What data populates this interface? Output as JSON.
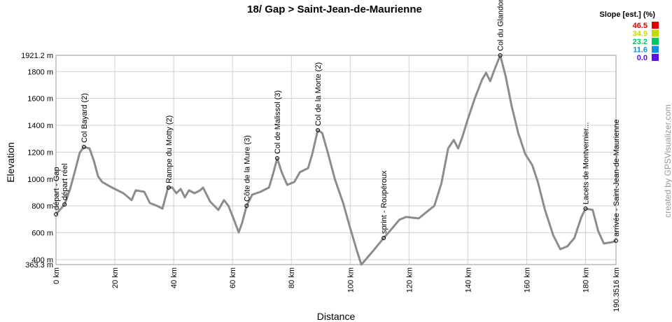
{
  "chart_data": {
    "type": "line",
    "title": "18/ Gap > Saint-Jean-de-Maurienne",
    "x_label": "Distance",
    "y_label": "Elevation",
    "credit": "created by GPSVisualizer.com",
    "color": "#8c8c8c",
    "grid": true,
    "xlim": [
      0,
      190.3516
    ],
    "ylim": [
      363.3,
      1921.2
    ],
    "xticks": [
      {
        "value": 0,
        "label": "0 km"
      },
      {
        "value": 20,
        "label": "20 km"
      },
      {
        "value": 40,
        "label": "40 km"
      },
      {
        "value": 60,
        "label": "60 km"
      },
      {
        "value": 80,
        "label": "80 km"
      },
      {
        "value": 100,
        "label": "100 km"
      },
      {
        "value": 120,
        "label": "120 km"
      },
      {
        "value": 140,
        "label": "140 km"
      },
      {
        "value": 160,
        "label": "160 km"
      },
      {
        "value": 180,
        "label": "180 km"
      },
      {
        "value": 190.3516,
        "label": "190.3516 km"
      }
    ],
    "yticks": [
      {
        "value": 363.3,
        "label": "363.3 m"
      },
      {
        "value": 400,
        "label": "400 m"
      },
      {
        "value": 600,
        "label": "600 m"
      },
      {
        "value": 800,
        "label": "800 m"
      },
      {
        "value": 1000,
        "label": "1000 m"
      },
      {
        "value": 1200,
        "label": "1200 m"
      },
      {
        "value": 1400,
        "label": "1400 m"
      },
      {
        "value": 1600,
        "label": "1600 m"
      },
      {
        "value": 1800,
        "label": "1800 m"
      },
      {
        "value": 1921.2,
        "label": "1921.2 m"
      }
    ],
    "x": [
      0,
      2.9,
      4.8,
      6.7,
      8.1,
      9.5,
      11.4,
      12.9,
      14.3,
      15.7,
      19.0,
      22.9,
      25.7,
      27.1,
      30.0,
      31.9,
      34.3,
      36.2,
      38.1,
      39.5,
      40.9,
      42.4,
      43.8,
      45.2,
      47.1,
      49.0,
      50.0,
      52.4,
      55.2,
      57.1,
      58.6,
      60.5,
      62.1,
      63.3,
      64.8,
      66.7,
      69.5,
      72.4,
      73.8,
      75.2,
      76.7,
      78.6,
      81.0,
      82.9,
      85.7,
      87.1,
      89.0,
      90.5,
      92.4,
      94.8,
      97.6,
      100.0,
      102.4,
      103.8,
      107.1,
      111.4,
      114.3,
      116.7,
      119.0,
      123.3,
      126.2,
      128.6,
      131.0,
      133.3,
      135.2,
      136.7,
      138.1,
      140.0,
      142.4,
      144.8,
      146.2,
      147.6,
      149.0,
      151.0,
      152.9,
      154.8,
      157.1,
      159.5,
      161.9,
      163.8,
      166.2,
      169.0,
      171.4,
      173.8,
      176.2,
      178.6,
      180.0,
      182.4,
      184.3,
      186.2,
      189.0,
      190.3516
    ],
    "y": [
      738,
      811,
      926,
      1082,
      1197,
      1239,
      1228,
      1134,
      1020,
      978,
      937,
      895,
      843,
      916,
      905,
      822,
      801,
      780,
      937,
      937,
      895,
      926,
      864,
      916,
      895,
      916,
      937,
      832,
      770,
      843,
      801,
      697,
      603,
      676,
      801,
      884,
      905,
      937,
      1041,
      1155,
      1051,
      957,
      978,
      1051,
      1082,
      1187,
      1364,
      1343,
      1197,
      999,
      822,
      634,
      457,
      363.3,
      447,
      561,
      634,
      697,
      718,
      707,
      759,
      801,
      968,
      1228,
      1291,
      1228,
      1312,
      1447,
      1604,
      1739,
      1791,
      1729,
      1812,
      1921.2,
      1760,
      1551,
      1343,
      1187,
      1103,
      978,
      770,
      582,
      478,
      499,
      561,
      718,
      780,
      770,
      613,
      520,
      530,
      541
    ],
    "annotations": [
      {
        "label": "départ - Gap",
        "x": 0,
        "y": 738
      },
      {
        "label": "départ réel",
        "x": 2.9,
        "y": 811
      },
      {
        "label": "Col Bayard (2)",
        "x": 9.5,
        "y": 1239
      },
      {
        "label": "Rampe du Motty (2)",
        "x": 38.3,
        "y": 937
      },
      {
        "label": "Côte de la Mure (3)",
        "x": 64.8,
        "y": 801
      },
      {
        "label": "Col de Malissol (3)",
        "x": 75.2,
        "y": 1155
      },
      {
        "label": "Col de la Morte (2)",
        "x": 89.0,
        "y": 1364
      },
      {
        "label": "sprint - Roupéroux",
        "x": 111.4,
        "y": 561
      },
      {
        "label": "Col du Glandon",
        "x": 151.0,
        "y": 1921.2
      },
      {
        "label": "Lacets de Montvernier...",
        "x": 180.0,
        "y": 780
      },
      {
        "label": "arrivée - Saint-Jean-de-Maurienne",
        "x": 190.3516,
        "y": 541
      }
    ],
    "slope_legend": {
      "title": "Slope [est.] (%)",
      "entries": [
        {
          "label": "46.5",
          "color": "#e00000"
        },
        {
          "label": "34.9",
          "color": "#c8d800"
        },
        {
          "label": "23.2",
          "color": "#00c860"
        },
        {
          "label": "11.6",
          "color": "#1090e0"
        },
        {
          "label": "0.0",
          "color": "#5a10e0"
        }
      ]
    }
  }
}
